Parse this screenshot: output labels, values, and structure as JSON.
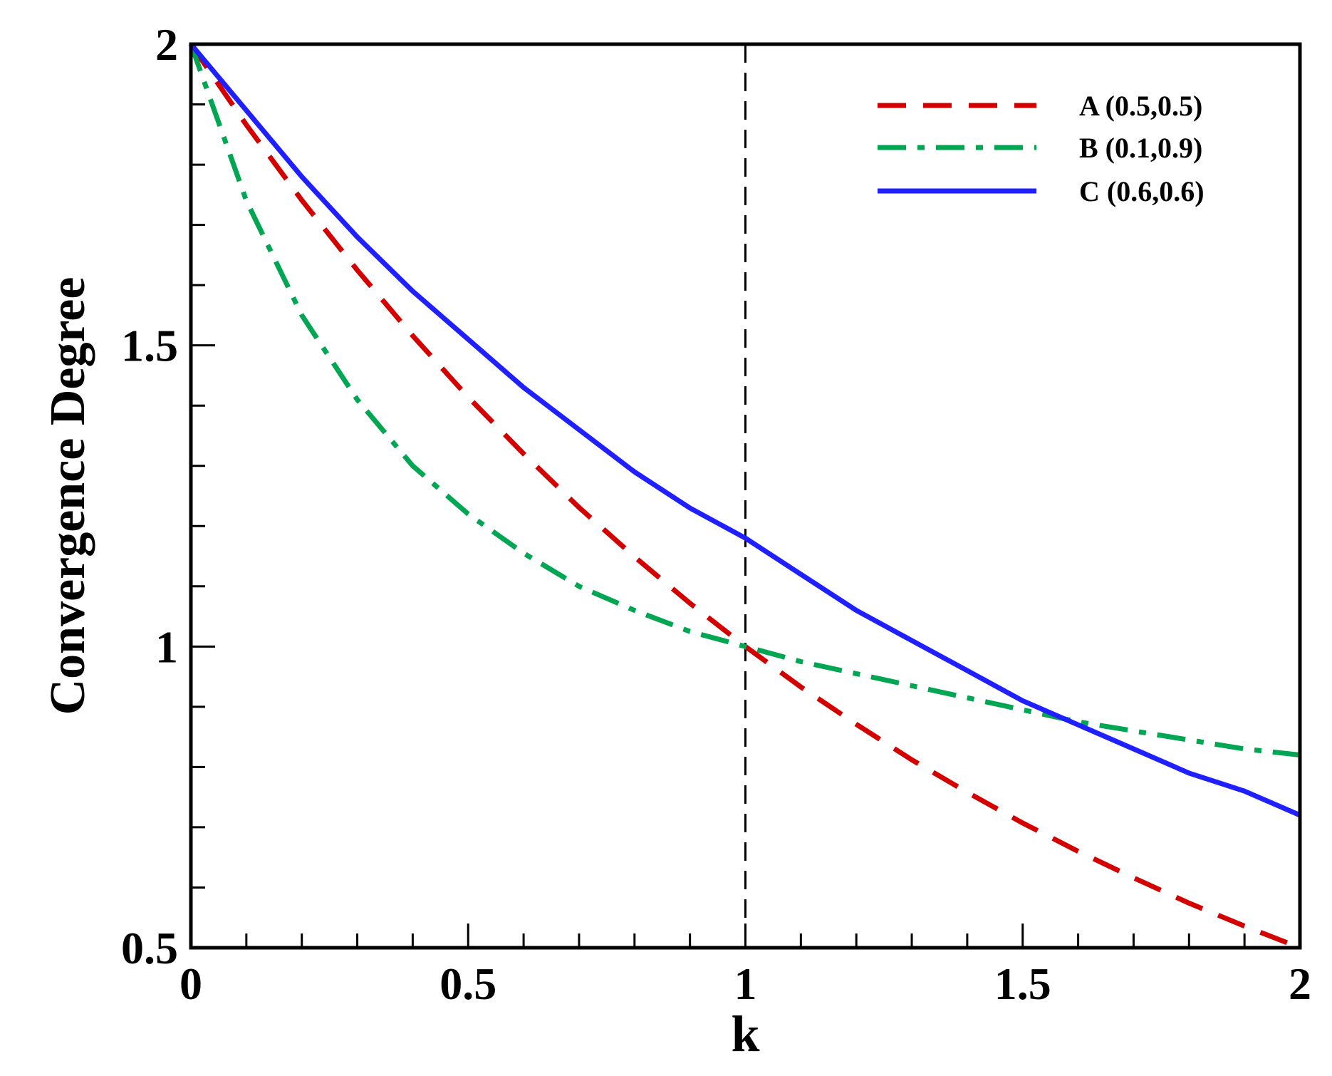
{
  "chart_data": {
    "type": "line",
    "title": "",
    "xlabel": "k",
    "ylabel": "Convergence Degree",
    "xlim": [
      0,
      2
    ],
    "ylim": [
      0.5,
      2
    ],
    "x_major_ticks": [
      0,
      0.5,
      1,
      1.5,
      2
    ],
    "x_tick_labels": [
      "0",
      "0.5",
      "1",
      "1.5",
      "2"
    ],
    "x_minor_step": 0.1,
    "y_major_ticks": [
      0.5,
      1,
      1.5,
      2
    ],
    "y_tick_labels": [
      "0.5",
      "1",
      "1.5",
      "2"
    ],
    "y_minor_step": 0.1,
    "grid": false,
    "legend_position": "top-right",
    "reference_line": {
      "x": 1,
      "style": "dashed",
      "color": "#000000"
    },
    "series": [
      {
        "name": "A (0.5,0.5)",
        "color": "#d40000",
        "style": "dashed",
        "x": [
          0,
          0.1,
          0.2,
          0.3,
          0.4,
          0.5,
          0.6,
          0.7,
          0.8,
          0.9,
          1.0,
          1.1,
          1.2,
          1.3,
          1.4,
          1.5,
          1.6,
          1.7,
          1.8,
          1.9,
          2.0
        ],
        "y": [
          2.0,
          1.866,
          1.741,
          1.625,
          1.516,
          1.414,
          1.32,
          1.231,
          1.149,
          1.072,
          1.0,
          0.933,
          0.871,
          0.812,
          0.758,
          0.707,
          0.66,
          0.616,
          0.574,
          0.536,
          0.5
        ]
      },
      {
        "name": "B (0.1,0.9)",
        "color": "#00a651",
        "style": "dashdot",
        "x": [
          0,
          0.1,
          0.2,
          0.3,
          0.4,
          0.5,
          0.6,
          0.7,
          0.8,
          0.9,
          1.0,
          1.1,
          1.2,
          1.3,
          1.4,
          1.5,
          1.6,
          1.7,
          1.8,
          1.9,
          2.0
        ],
        "y": [
          2.0,
          1.74,
          1.55,
          1.41,
          1.3,
          1.22,
          1.155,
          1.1,
          1.06,
          1.025,
          1.0,
          0.975,
          0.955,
          0.935,
          0.915,
          0.895,
          0.875,
          0.86,
          0.845,
          0.83,
          0.82
        ]
      },
      {
        "name": "C (0.6,0.6)",
        "color": "#1f1fff",
        "style": "solid",
        "x": [
          0,
          0.1,
          0.2,
          0.3,
          0.4,
          0.5,
          0.6,
          0.7,
          0.8,
          0.9,
          1.0,
          1.1,
          1.2,
          1.3,
          1.4,
          1.5,
          1.6,
          1.7,
          1.8,
          1.9,
          2.0
        ],
        "y": [
          2.0,
          1.89,
          1.78,
          1.68,
          1.59,
          1.51,
          1.43,
          1.36,
          1.29,
          1.23,
          1.18,
          1.12,
          1.06,
          1.01,
          0.96,
          0.91,
          0.87,
          0.83,
          0.79,
          0.76,
          0.72
        ]
      }
    ]
  }
}
